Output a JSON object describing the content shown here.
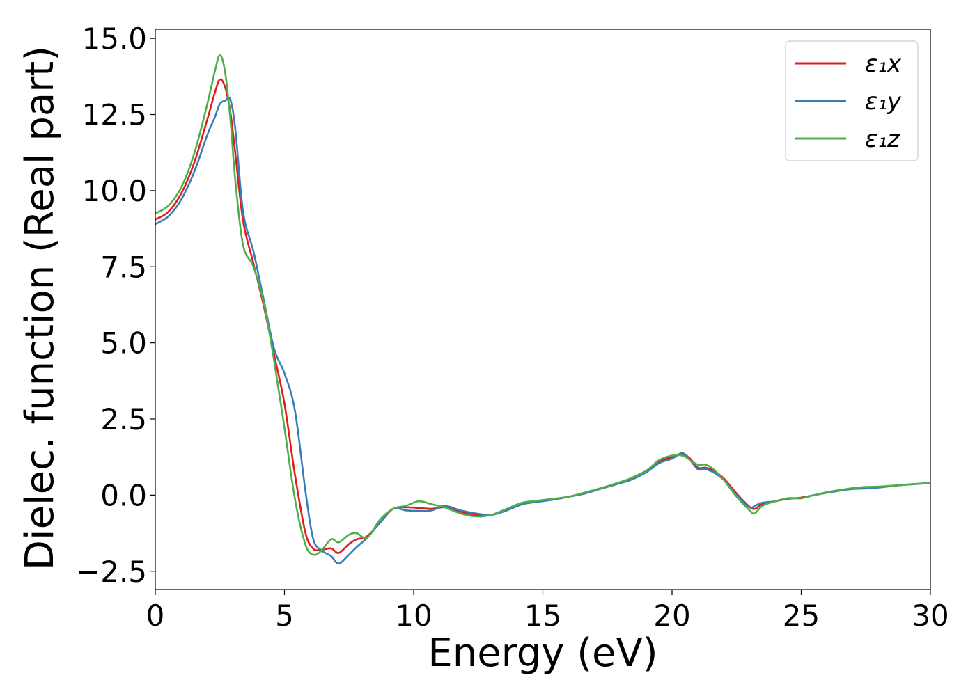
{
  "chart_data": {
    "type": "line",
    "title": "",
    "xlabel": "Energy (eV)",
    "ylabel": "Dielec. function (Real part)",
    "xlim": [
      0,
      30
    ],
    "ylim": [
      -3.1,
      15.3
    ],
    "xticks": [
      0,
      5,
      10,
      15,
      20,
      25,
      30
    ],
    "xtick_labels": [
      "0",
      "5",
      "10",
      "15",
      "20",
      "25",
      "30"
    ],
    "yticks": [
      -2.5,
      0,
      2.5,
      5,
      7.5,
      10,
      12.5,
      15
    ],
    "ytick_labels": [
      "−2.5",
      "0.0",
      "2.5",
      "5.0",
      "7.5",
      "10.0",
      "12.5",
      "15.0"
    ],
    "grid": false,
    "legend_position": "top-right",
    "x": [
      0,
      0.5,
      1,
      1.5,
      2,
      2.3,
      2.5,
      2.7,
      2.9,
      3.1,
      3.4,
      3.8,
      4.2,
      4.6,
      5.0,
      5.4,
      5.8,
      6.1,
      6.4,
      6.8,
      7.1,
      7.5,
      7.8,
      8.2,
      8.7,
      9.2,
      9.7,
      10.2,
      10.7,
      11.2,
      11.8,
      12.4,
      13.0,
      13.6,
      14.2,
      14.8,
      15.4,
      16.0,
      16.6,
      17.2,
      17.8,
      18.4,
      19.0,
      19.5,
      20.0,
      20.4,
      20.7,
      21.0,
      21.3,
      21.6,
      22.0,
      22.5,
      23.0,
      23.2,
      23.5,
      24.0,
      24.5,
      25.0,
      25.5,
      26.0,
      26.5,
      27.0,
      27.5,
      28.0,
      28.5,
      29.0,
      29.5,
      30.0
    ],
    "series": [
      {
        "name": "ε₁x",
        "color": "#e41a1c",
        "values": [
          9.05,
          9.3,
          9.9,
          10.9,
          12.3,
          13.2,
          13.65,
          13.4,
          12.6,
          11.2,
          9.0,
          7.6,
          6.2,
          4.6,
          3.0,
          0.7,
          -1.2,
          -1.75,
          -1.8,
          -1.75,
          -1.9,
          -1.6,
          -1.45,
          -1.35,
          -0.9,
          -0.45,
          -0.4,
          -0.42,
          -0.45,
          -0.4,
          -0.55,
          -0.65,
          -0.65,
          -0.5,
          -0.3,
          -0.2,
          -0.15,
          -0.05,
          0.05,
          0.2,
          0.35,
          0.55,
          0.8,
          1.1,
          1.25,
          1.35,
          1.2,
          0.9,
          0.9,
          0.8,
          0.55,
          0.05,
          -0.38,
          -0.45,
          -0.3,
          -0.2,
          -0.12,
          -0.08,
          0.0,
          0.08,
          0.15,
          0.22,
          0.25,
          0.26,
          0.3,
          0.34,
          0.37,
          0.4
        ]
      },
      {
        "name": "ε₁y",
        "color": "#377eb8",
        "values": [
          8.9,
          9.15,
          9.7,
          10.6,
          11.8,
          12.4,
          12.85,
          12.95,
          13.0,
          12.0,
          9.3,
          8.0,
          6.4,
          4.8,
          4.0,
          2.8,
          0.2,
          -1.4,
          -1.8,
          -2.0,
          -2.25,
          -1.95,
          -1.7,
          -1.4,
          -0.9,
          -0.45,
          -0.5,
          -0.52,
          -0.5,
          -0.35,
          -0.5,
          -0.6,
          -0.65,
          -0.5,
          -0.3,
          -0.22,
          -0.15,
          -0.05,
          0.05,
          0.2,
          0.35,
          0.5,
          0.75,
          1.05,
          1.2,
          1.38,
          1.15,
          0.85,
          0.85,
          0.75,
          0.5,
          0.0,
          -0.4,
          -0.35,
          -0.25,
          -0.2,
          -0.1,
          -0.1,
          0.0,
          0.08,
          0.15,
          0.2,
          0.22,
          0.25,
          0.3,
          0.34,
          0.37,
          0.4
        ]
      },
      {
        "name": "ε₁z",
        "color": "#4daf4a",
        "values": [
          9.25,
          9.5,
          10.1,
          11.2,
          12.8,
          13.9,
          14.45,
          13.9,
          12.4,
          10.3,
          8.2,
          7.5,
          6.3,
          4.4,
          2.2,
          -0.1,
          -1.6,
          -1.95,
          -1.85,
          -1.45,
          -1.55,
          -1.3,
          -1.25,
          -1.4,
          -0.8,
          -0.45,
          -0.35,
          -0.2,
          -0.3,
          -0.4,
          -0.6,
          -0.7,
          -0.65,
          -0.45,
          -0.25,
          -0.18,
          -0.12,
          -0.05,
          0.08,
          0.22,
          0.38,
          0.55,
          0.8,
          1.15,
          1.3,
          1.3,
          1.15,
          1.0,
          1.0,
          0.85,
          0.5,
          -0.05,
          -0.5,
          -0.6,
          -0.35,
          -0.2,
          -0.1,
          -0.1,
          0.0,
          0.1,
          0.17,
          0.23,
          0.27,
          0.28,
          0.31,
          0.34,
          0.37,
          0.4
        ]
      }
    ]
  }
}
